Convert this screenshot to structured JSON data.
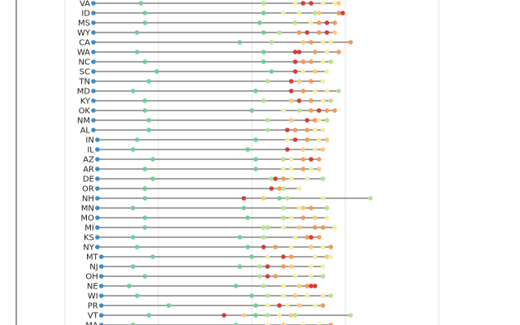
{
  "chart_data": {
    "type": "dot-range",
    "title": "",
    "xlabel": "",
    "ylabel": "",
    "xlim": [
      0,
      100
    ],
    "grid": true,
    "colors": {
      "start": "#3a8fc4",
      "teal": "#6fcf97",
      "lightgreen": "#b5e38e",
      "yellow": "#f2ef9e",
      "lightorange": "#fbc97a",
      "orange": "#f59a54",
      "red": "#d93b3b",
      "line": "#6e6e6e",
      "axis": "#333333",
      "grid": "#e3e3e3"
    },
    "states": [
      {
        "name": "VA",
        "x0": 0,
        "points": [
          [
            12,
            "teal"
          ],
          [
            43,
            "lightgreen"
          ],
          [
            51,
            "yellow"
          ],
          [
            53,
            "red"
          ],
          [
            55,
            "red"
          ],
          [
            58,
            "yellow"
          ],
          [
            61,
            "yellow"
          ],
          [
            62,
            "lightorange"
          ]
        ]
      },
      {
        "name": "ID",
        "x0": 0,
        "points": [
          [
            13,
            "teal"
          ],
          [
            43,
            "teal"
          ],
          [
            48,
            "yellow"
          ],
          [
            52,
            "yellow"
          ],
          [
            56,
            "lightgreen"
          ],
          [
            57,
            "lightorange"
          ],
          [
            62,
            "orange"
          ],
          [
            63,
            "red"
          ]
        ]
      },
      {
        "name": "MS",
        "x0": 0,
        "points": [
          [
            13,
            "teal"
          ],
          [
            42,
            "teal"
          ],
          [
            51,
            "lightgreen"
          ],
          [
            55,
            "yellow"
          ],
          [
            57,
            "orange"
          ],
          [
            59,
            "red"
          ],
          [
            61,
            "orange"
          ]
        ]
      },
      {
        "name": "WY",
        "x0": 0,
        "points": [
          [
            11,
            "teal"
          ],
          [
            43,
            "teal"
          ],
          [
            47,
            "lightgreen"
          ],
          [
            52,
            "orange"
          ],
          [
            54,
            "red"
          ],
          [
            57,
            "orange"
          ],
          [
            59,
            "red"
          ],
          [
            61,
            "lightorange"
          ]
        ]
      },
      {
        "name": "CA",
        "x0": 0,
        "points": [
          [
            37,
            "teal"
          ],
          [
            45,
            "lightgreen"
          ],
          [
            53,
            "lightorange"
          ],
          [
            55,
            "orange"
          ],
          [
            58,
            "yellow"
          ],
          [
            60,
            "yellow"
          ],
          [
            65,
            "orange"
          ]
        ]
      },
      {
        "name": "WA",
        "x0": 0,
        "points": [
          [
            11,
            "teal"
          ],
          [
            43,
            "teal"
          ],
          [
            51,
            "red"
          ],
          [
            52,
            "red"
          ],
          [
            56,
            "orange"
          ],
          [
            59,
            "yellow"
          ],
          [
            62,
            "orange"
          ]
        ]
      },
      {
        "name": "NC",
        "x0": 0,
        "points": [
          [
            13,
            "teal"
          ],
          [
            43,
            "teal"
          ],
          [
            51,
            "red"
          ],
          [
            53,
            "orange"
          ],
          [
            55,
            "orange"
          ],
          [
            58,
            "yellow"
          ],
          [
            60,
            "lightgreen"
          ]
        ]
      },
      {
        "name": "SC",
        "x0": 0,
        "points": [
          [
            16,
            "teal"
          ],
          [
            45,
            "teal"
          ],
          [
            51,
            "red"
          ],
          [
            53,
            "yellow"
          ],
          [
            56,
            "lightorange"
          ],
          [
            59,
            "yellow"
          ]
        ]
      },
      {
        "name": "TN",
        "x0": 0,
        "points": [
          [
            14,
            "teal"
          ],
          [
            44,
            "lightgreen"
          ],
          [
            50,
            "red"
          ],
          [
            52,
            "lightorange"
          ],
          [
            55,
            "orange"
          ],
          [
            58,
            "yellow"
          ]
        ]
      },
      {
        "name": "MD",
        "x0": 0,
        "points": [
          [
            10,
            "teal"
          ],
          [
            41,
            "teal"
          ],
          [
            50,
            "red"
          ],
          [
            53,
            "orange"
          ],
          [
            56,
            "yellow"
          ],
          [
            59,
            "yellow"
          ],
          [
            62,
            "lightgreen"
          ]
        ]
      },
      {
        "name": "KY",
        "x0": 0,
        "points": [
          [
            13,
            "teal"
          ],
          [
            43,
            "lightgreen"
          ],
          [
            50,
            "lightorange"
          ],
          [
            52,
            "red"
          ],
          [
            55,
            "orange"
          ],
          [
            58,
            "yellow"
          ],
          [
            60,
            "lightgreen"
          ]
        ]
      },
      {
        "name": "OK",
        "x0": 0,
        "points": [
          [
            13,
            "teal"
          ],
          [
            40,
            "teal"
          ],
          [
            48,
            "yellow"
          ],
          [
            52,
            "lightgreen"
          ],
          [
            55,
            "orange"
          ],
          [
            57,
            "red"
          ],
          [
            59,
            "orange"
          ],
          [
            61,
            "orange"
          ]
        ]
      },
      {
        "name": "NM",
        "x0": 0,
        "points": [
          [
            14,
            "teal"
          ],
          [
            44,
            "lightgreen"
          ],
          [
            50,
            "lightorange"
          ],
          [
            54,
            "red"
          ],
          [
            56,
            "orange"
          ],
          [
            57,
            "yellow"
          ],
          [
            59,
            "lightgreen"
          ]
        ]
      },
      {
        "name": "AL",
        "x0": 0,
        "points": [
          [
            14,
            "teal"
          ],
          [
            44,
            "lightgreen"
          ],
          [
            49,
            "red"
          ],
          [
            51,
            "orange"
          ],
          [
            54,
            "orange"
          ],
          [
            56,
            "yellow"
          ],
          [
            58,
            "yellow"
          ]
        ]
      },
      {
        "name": "IN",
        "x0": 1,
        "points": [
          [
            11,
            "teal"
          ],
          [
            41,
            "teal"
          ],
          [
            49,
            "yellow"
          ],
          [
            51,
            "red"
          ],
          [
            54,
            "orange"
          ],
          [
            57,
            "yellow"
          ],
          [
            59,
            "lightorange"
          ]
        ]
      },
      {
        "name": "IL",
        "x0": 1,
        "points": [
          [
            10,
            "teal"
          ],
          [
            39,
            "teal"
          ],
          [
            49,
            "red"
          ],
          [
            53,
            "lightorange"
          ],
          [
            56,
            "yellow"
          ],
          [
            58,
            "lightorange"
          ]
        ]
      },
      {
        "name": "AZ",
        "x0": 1,
        "points": [
          [
            15,
            "teal"
          ],
          [
            41,
            "teal"
          ],
          [
            48,
            "lightgreen"
          ],
          [
            50,
            "yellow"
          ],
          [
            53,
            "orange"
          ],
          [
            55,
            "red"
          ],
          [
            57,
            "orange"
          ]
        ]
      },
      {
        "name": "AR",
        "x0": 1,
        "points": [
          [
            13,
            "teal"
          ],
          [
            41,
            "teal"
          ],
          [
            48,
            "yellow"
          ],
          [
            50,
            "yellow"
          ],
          [
            53,
            "orange"
          ],
          [
            55,
            "yellow"
          ],
          [
            57,
            "lightorange"
          ]
        ]
      },
      {
        "name": "DE",
        "x0": 1,
        "points": [
          [
            15,
            "teal"
          ],
          [
            45,
            "lightgreen"
          ],
          [
            46,
            "red"
          ],
          [
            48,
            "orange"
          ],
          [
            50,
            "yellow"
          ],
          [
            54,
            "yellow"
          ],
          [
            58,
            "lightgreen"
          ]
        ]
      },
      {
        "name": "OR",
        "x0": 1,
        "points": [
          [
            13,
            "teal"
          ],
          [
            45,
            "red"
          ],
          [
            47,
            "orange"
          ],
          [
            48,
            "lightgreen"
          ],
          [
            52,
            "yellow"
          ]
        ]
      },
      {
        "name": "NH",
        "x0": 1,
        "points": [
          [
            13,
            "teal"
          ],
          [
            38,
            "red"
          ],
          [
            43,
            "lightorange"
          ],
          [
            47,
            "teal"
          ],
          [
            49,
            "lightgreen"
          ],
          [
            58,
            "yellow"
          ],
          [
            70,
            "lightgreen"
          ]
        ]
      },
      {
        "name": "MN",
        "x0": 1,
        "points": [
          [
            10,
            "teal"
          ],
          [
            38,
            "teal"
          ],
          [
            48,
            "lightgreen"
          ],
          [
            52,
            "yellow"
          ],
          [
            53,
            "lightorange"
          ],
          [
            55,
            "orange"
          ],
          [
            59,
            "lightgreen"
          ]
        ]
      },
      {
        "name": "MO",
        "x0": 1,
        "points": [
          [
            13,
            "teal"
          ],
          [
            39,
            "teal"
          ],
          [
            48,
            "lightgreen"
          ],
          [
            50,
            "yellow"
          ],
          [
            53,
            "orange"
          ],
          [
            56,
            "lightorange"
          ],
          [
            59,
            "yellow"
          ]
        ]
      },
      {
        "name": "MI",
        "x0": 1,
        "points": [
          [
            13,
            "teal"
          ],
          [
            43,
            "lightgreen"
          ],
          [
            44,
            "lightgreen"
          ],
          [
            48,
            "yellow"
          ],
          [
            52,
            "lightorange"
          ],
          [
            56,
            "orange"
          ],
          [
            58,
            "orange"
          ],
          [
            61,
            "yellow"
          ]
        ]
      },
      {
        "name": "KS",
        "x0": 1,
        "points": [
          [
            10,
            "teal"
          ],
          [
            37,
            "teal"
          ],
          [
            43,
            "lightgreen"
          ],
          [
            51,
            "yellow"
          ],
          [
            54,
            "orange"
          ],
          [
            55,
            "red"
          ],
          [
            57,
            "orange"
          ]
        ]
      },
      {
        "name": "NY",
        "x0": 1,
        "points": [
          [
            11,
            "teal"
          ],
          [
            39,
            "teal"
          ],
          [
            43,
            "red"
          ],
          [
            46,
            "orange"
          ],
          [
            50,
            "yellow"
          ],
          [
            55,
            "lightorange"
          ],
          [
            58,
            "yellow"
          ],
          [
            60,
            "orange"
          ]
        ]
      },
      {
        "name": "MT",
        "x0": 2,
        "points": [
          [
            15,
            "teal"
          ],
          [
            40,
            "teal"
          ],
          [
            44,
            "yellow"
          ],
          [
            48,
            "red"
          ],
          [
            50,
            "orange"
          ],
          [
            56,
            "yellow"
          ],
          [
            59,
            "lightorange"
          ],
          [
            60,
            "yellow"
          ]
        ]
      },
      {
        "name": "NJ",
        "x0": 2,
        "points": [
          [
            10,
            "teal"
          ],
          [
            37,
            "teal"
          ],
          [
            42,
            "lightgreen"
          ],
          [
            44,
            "red"
          ],
          [
            48,
            "orange"
          ],
          [
            50,
            "lightorange"
          ],
          [
            55,
            "yellow"
          ],
          [
            58,
            "yellow"
          ]
        ]
      },
      {
        "name": "OH",
        "x0": 2,
        "points": [
          [
            13,
            "teal"
          ],
          [
            42,
            "lightgreen"
          ],
          [
            44,
            "red"
          ],
          [
            46,
            "orange"
          ],
          [
            51,
            "yellow"
          ],
          [
            55,
            "yellow"
          ],
          [
            58,
            "lightgreen"
          ]
        ]
      },
      {
        "name": "NE",
        "x0": 2,
        "points": [
          [
            9,
            "teal"
          ],
          [
            36,
            "teal"
          ],
          [
            43,
            "lightgreen"
          ],
          [
            48,
            "yellow"
          ],
          [
            52,
            "lightorange"
          ],
          [
            54,
            "orange"
          ],
          [
            55,
            "red"
          ],
          [
            56,
            "red"
          ]
        ]
      },
      {
        "name": "WI",
        "x0": 2,
        "points": [
          [
            11,
            "teal"
          ],
          [
            40,
            "teal"
          ],
          [
            44,
            "lightgreen"
          ],
          [
            48,
            "yellow"
          ],
          [
            51,
            "lightorange"
          ],
          [
            54,
            "yellow"
          ],
          [
            58,
            "yellow"
          ],
          [
            60,
            "lightgreen"
          ]
        ]
      },
      {
        "name": "PR",
        "x0": 2,
        "points": [
          [
            19,
            "teal"
          ],
          [
            41,
            "teal"
          ],
          [
            44,
            "yellow"
          ],
          [
            47,
            "red"
          ],
          [
            49,
            "yellow"
          ],
          [
            52,
            "lightorange"
          ],
          [
            56,
            "yellow"
          ],
          [
            58,
            "orange"
          ]
        ]
      },
      {
        "name": "VT",
        "x0": 2,
        "points": [
          [
            14,
            "teal"
          ],
          [
            33,
            "red"
          ],
          [
            38,
            "lightorange"
          ],
          [
            41,
            "teal"
          ],
          [
            44,
            "lightgreen"
          ],
          [
            47,
            "yellow"
          ],
          [
            50,
            "lightorange"
          ],
          [
            51,
            "lightgreen"
          ],
          [
            65,
            "lightgreen"
          ]
        ]
      },
      {
        "name": "MA",
        "x0": 2,
        "points": [
          [
            10,
            "teal"
          ],
          [
            36,
            "teal"
          ],
          [
            44,
            "yellow"
          ],
          [
            48,
            "lightorange"
          ],
          [
            53,
            "yellow"
          ],
          [
            57,
            "yellow"
          ],
          [
            60,
            "orange"
          ]
        ]
      }
    ]
  }
}
